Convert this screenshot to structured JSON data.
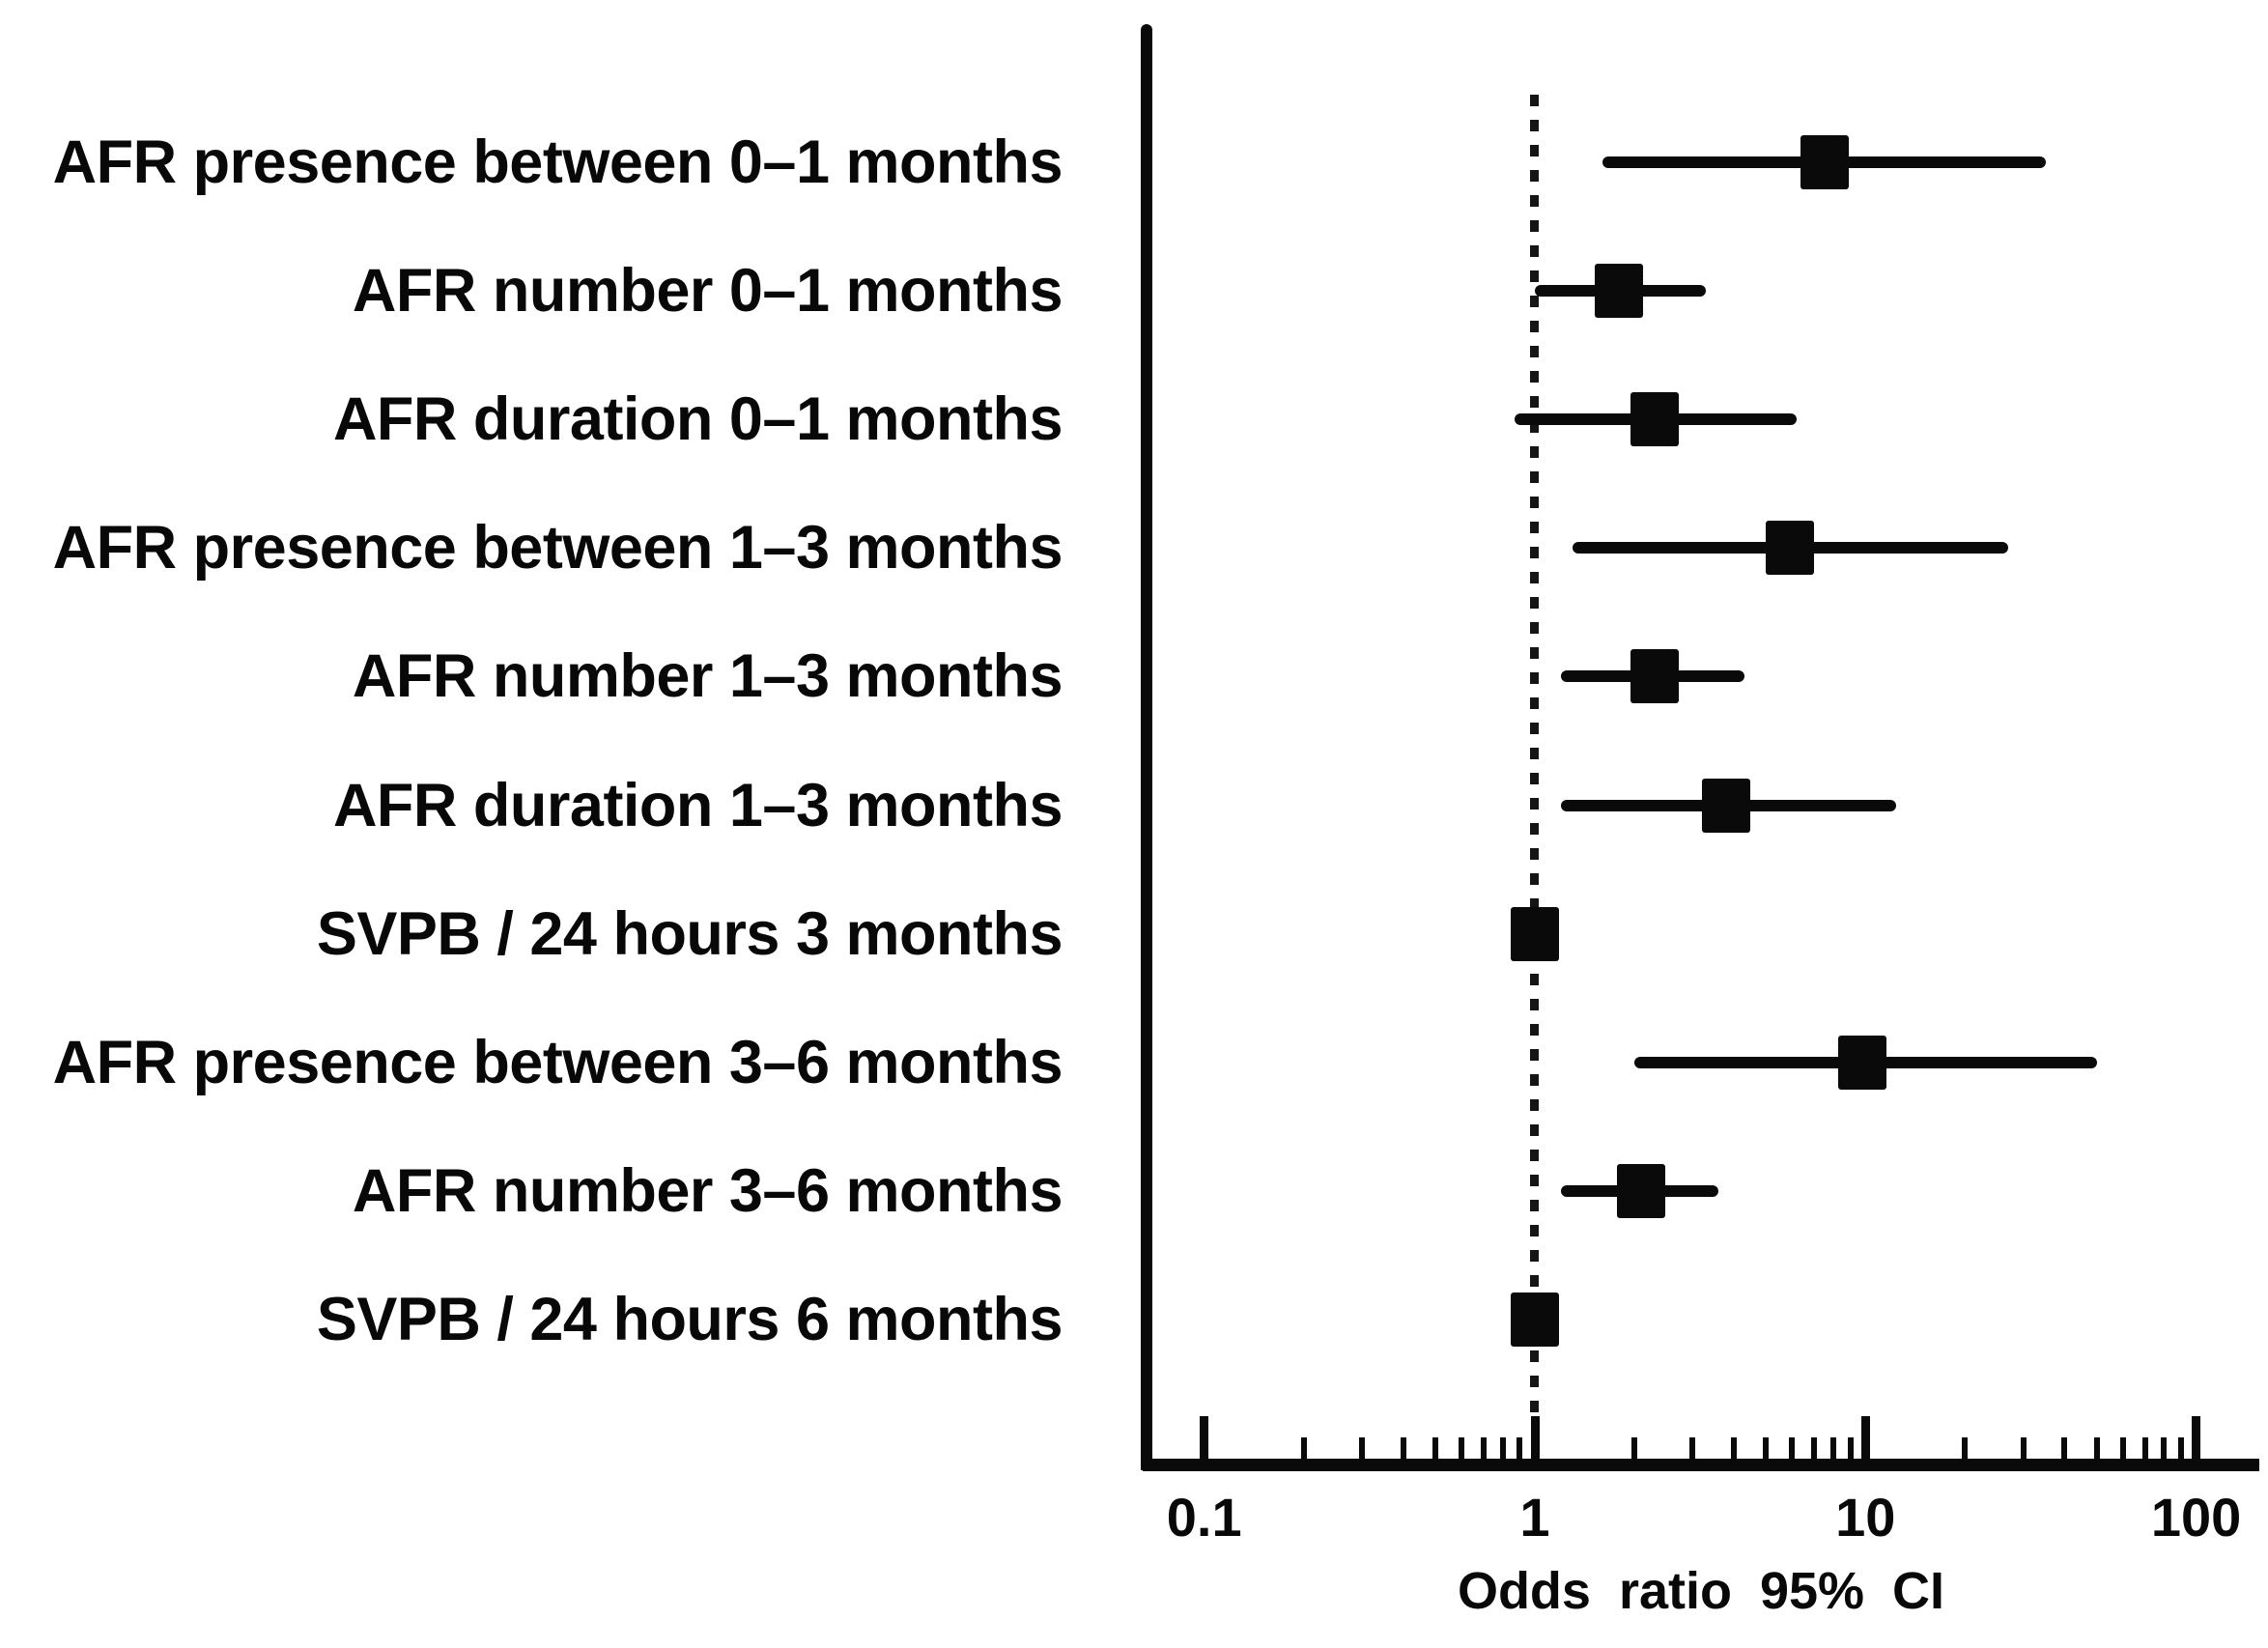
{
  "figure": {
    "background_color": "#ffffff",
    "ink_color": "#0a0a0a"
  },
  "chart_data": {
    "type": "scatter",
    "subtype": "forest-plot-odds-ratios",
    "title": "",
    "xlabel": "Odds ratio 95% CI",
    "x_scale": "log10",
    "x_axis_range": [
      0.066,
      155
    ],
    "x_major_ticks": [
      {
        "value": 0.1,
        "label": "0.1"
      },
      {
        "value": 1,
        "label": "1"
      },
      {
        "value": 10,
        "label": "10"
      },
      {
        "value": 100,
        "label": "100"
      }
    ],
    "x_minor_ticks": [
      0.2,
      0.3,
      0.4,
      0.5,
      0.6,
      0.7,
      0.8,
      0.9,
      2,
      3,
      4,
      5,
      6,
      7,
      8,
      9,
      20,
      30,
      40,
      50,
      60,
      70,
      80,
      90
    ],
    "reference_line_value": 1,
    "grid": "off",
    "legend": "none",
    "rows": [
      {
        "label": "AFR presence between 0–1 months",
        "or": 7.5,
        "ci_low": 1.6,
        "ci_high": 35
      },
      {
        "label": "AFR number 0–1 months",
        "or": 1.8,
        "ci_low": 1.0,
        "ci_high": 3.3
      },
      {
        "label": "AFR duration 0–1 months",
        "or": 2.3,
        "ci_low": 0.87,
        "ci_high": 6.2
      },
      {
        "label": "AFR presence between 1–3 months",
        "or": 5.9,
        "ci_low": 1.3,
        "ci_high": 27
      },
      {
        "label": "AFR number 1–3 months",
        "or": 2.3,
        "ci_low": 1.2,
        "ci_high": 4.3
      },
      {
        "label": "AFR duration 1–3 months",
        "or": 3.8,
        "ci_low": 1.2,
        "ci_high": 12.4
      },
      {
        "label": "SVPB / 24 hours 3 months",
        "or": 1.0,
        "ci_low": 1.0,
        "ci_high": 1.0
      },
      {
        "label": "AFR presence between 3–6 months",
        "or": 9.8,
        "ci_low": 2.0,
        "ci_high": 50
      },
      {
        "label": "AFR number 3–6 months",
        "or": 2.1,
        "ci_low": 1.2,
        "ci_high": 3.6
      },
      {
        "label": "SVPB / 24 hours 6 months",
        "or": 1.0,
        "ci_low": 1.0,
        "ci_high": 1.0
      }
    ]
  }
}
